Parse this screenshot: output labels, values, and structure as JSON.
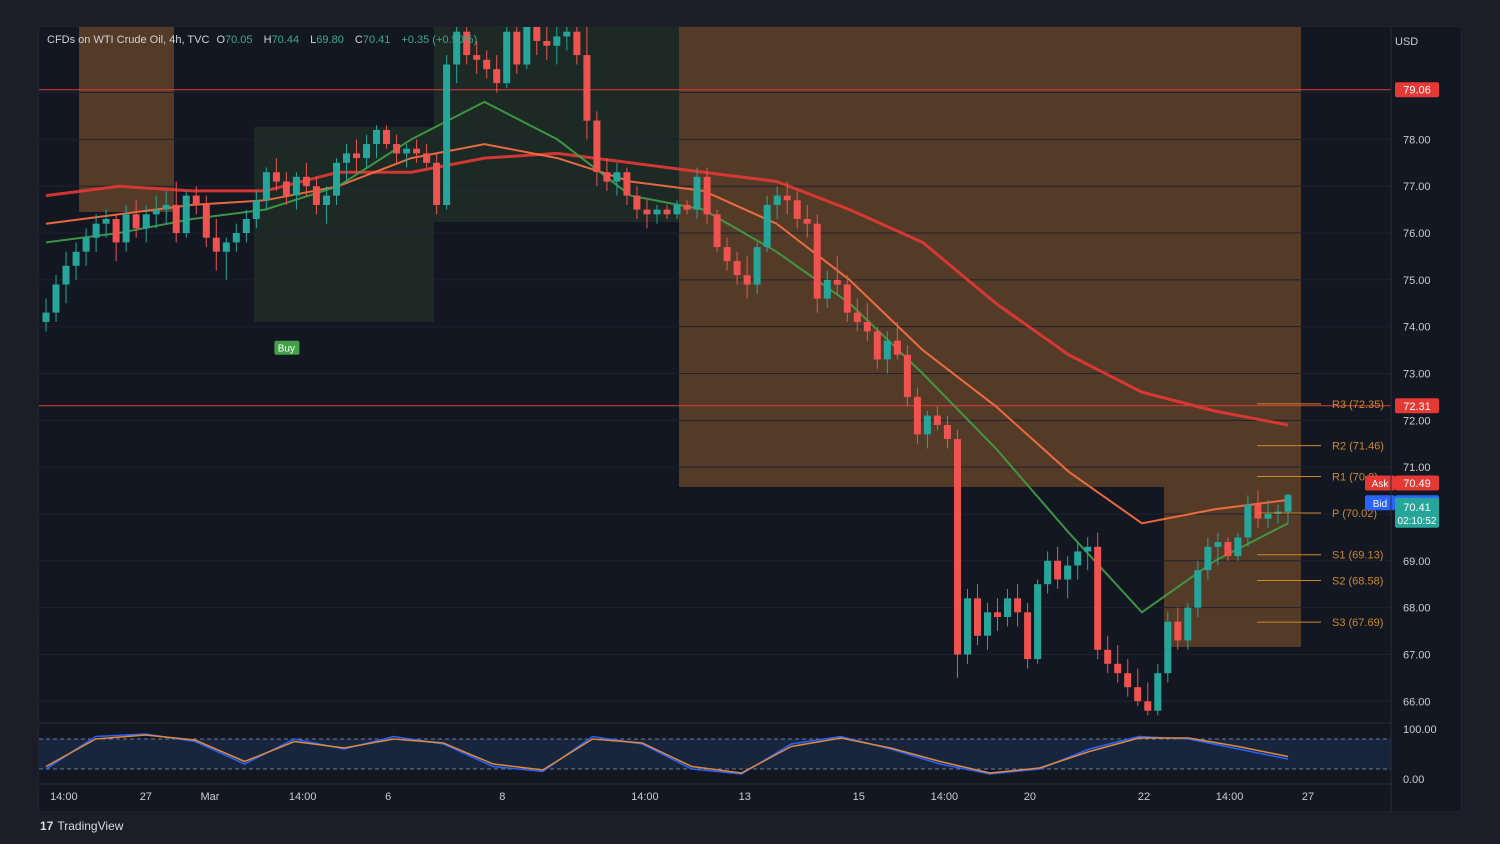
{
  "legend": {
    "symbol": "CFDs on WTI Crude Oil, 4h, TVC",
    "o_label": "O",
    "o": "70.05",
    "h_label": "H",
    "h": "70.44",
    "l_label": "L",
    "l": "69.80",
    "c_label": "C",
    "c": "70.41",
    "change": "+0.35 (+0.50%)"
  },
  "branding": {
    "logo": "TradingView"
  },
  "currency": "USD",
  "colors": {
    "up": "#26a69a",
    "down": "#ef5350",
    "ma_red": "#e53935",
    "ma_green": "#43a047",
    "cloud_orange": "#8a5a2b",
    "pivot": "#c98a2a",
    "panel": "#131722"
  },
  "chart_data": [
    {
      "type": "candlestick",
      "title": "",
      "ylim": [
        65.6,
        80.4
      ],
      "y_ticks": [
        "79.00",
        "78.00",
        "77.00",
        "76.00",
        "75.00",
        "74.00",
        "73.00",
        "72.00",
        "71.00",
        "70.00",
        "69.00",
        "68.00",
        "67.00",
        "66.00"
      ],
      "x_ticks": [
        "14:00",
        "27",
        "Mar",
        "14:00",
        "6",
        "8",
        "14:00",
        "13",
        "15",
        "14:00",
        "20",
        "22",
        "14:00",
        "27"
      ],
      "x_tick_index": [
        2.5,
        14,
        23,
        36,
        48,
        64,
        84,
        98,
        114,
        126,
        138,
        154,
        166,
        177
      ],
      "candles_ohlc": [
        [
          74.1,
          74.6,
          73.9,
          74.3
        ],
        [
          74.3,
          75.1,
          74.1,
          74.9
        ],
        [
          74.9,
          75.6,
          74.5,
          75.3
        ],
        [
          75.3,
          75.8,
          75.0,
          75.6
        ],
        [
          75.6,
          76.1,
          75.3,
          75.9
        ],
        [
          75.9,
          76.4,
          75.6,
          76.2
        ],
        [
          76.2,
          76.5,
          75.9,
          76.3
        ],
        [
          76.3,
          76.4,
          75.4,
          75.8
        ],
        [
          75.8,
          76.6,
          75.6,
          76.4
        ],
        [
          76.4,
          76.7,
          75.9,
          76.1
        ],
        [
          76.1,
          76.6,
          75.8,
          76.4
        ],
        [
          76.4,
          76.8,
          76.1,
          76.5
        ],
        [
          76.5,
          76.9,
          76.2,
          76.6
        ],
        [
          76.6,
          77.1,
          75.8,
          76.0
        ],
        [
          76.0,
          76.9,
          75.9,
          76.8
        ],
        [
          76.8,
          77.0,
          76.4,
          76.6
        ],
        [
          76.6,
          76.8,
          75.7,
          75.9
        ],
        [
          75.9,
          76.3,
          75.2,
          75.6
        ],
        [
          75.6,
          75.9,
          75.0,
          75.8
        ],
        [
          75.8,
          76.2,
          75.6,
          76.0
        ],
        [
          76.0,
          76.5,
          75.8,
          76.3
        ],
        [
          76.3,
          76.9,
          76.1,
          76.7
        ],
        [
          76.7,
          77.4,
          76.5,
          77.3
        ],
        [
          77.3,
          77.6,
          76.9,
          77.1
        ],
        [
          77.1,
          77.3,
          76.6,
          76.8
        ],
        [
          76.8,
          77.3,
          76.5,
          77.2
        ],
        [
          77.2,
          77.5,
          76.8,
          77.0
        ],
        [
          77.0,
          77.2,
          76.4,
          76.6
        ],
        [
          76.6,
          77.0,
          76.2,
          76.8
        ],
        [
          76.8,
          77.6,
          76.6,
          77.5
        ],
        [
          77.5,
          77.9,
          77.1,
          77.7
        ],
        [
          77.7,
          78.0,
          77.3,
          77.6
        ],
        [
          77.6,
          78.1,
          77.4,
          77.9
        ],
        [
          77.9,
          78.3,
          77.6,
          78.2
        ],
        [
          78.2,
          78.3,
          77.8,
          77.9
        ],
        [
          77.9,
          78.1,
          77.5,
          77.7
        ],
        [
          77.7,
          77.9,
          77.4,
          77.8
        ],
        [
          77.8,
          78.0,
          77.5,
          77.7
        ],
        [
          77.7,
          77.9,
          77.4,
          77.5
        ],
        [
          77.5,
          77.7,
          76.4,
          76.6
        ],
        [
          76.6,
          79.8,
          76.5,
          79.6
        ],
        [
          79.6,
          80.4,
          79.2,
          80.3
        ],
        [
          80.3,
          80.4,
          79.6,
          79.8
        ],
        [
          79.8,
          80.1,
          79.4,
          79.7
        ],
        [
          79.7,
          79.9,
          79.3,
          79.5
        ],
        [
          79.5,
          79.8,
          79.0,
          79.2
        ],
        [
          79.2,
          80.4,
          79.1,
          80.3
        ],
        [
          80.3,
          80.4,
          79.4,
          79.6
        ],
        [
          79.6,
          80.4,
          79.5,
          80.4
        ],
        [
          80.4,
          80.4,
          79.8,
          80.1
        ],
        [
          80.1,
          80.4,
          79.7,
          80.0
        ],
        [
          80.0,
          80.4,
          79.6,
          80.2
        ],
        [
          80.2,
          80.4,
          79.9,
          80.3
        ],
        [
          80.3,
          80.4,
          79.6,
          79.8
        ],
        [
          79.8,
          80.4,
          78.0,
          78.4
        ],
        [
          78.4,
          78.6,
          77.0,
          77.3
        ],
        [
          77.3,
          77.6,
          76.9,
          77.1
        ],
        [
          77.1,
          77.5,
          76.8,
          77.3
        ],
        [
          77.3,
          77.4,
          76.6,
          76.8
        ],
        [
          76.8,
          77.0,
          76.3,
          76.5
        ],
        [
          76.5,
          76.7,
          76.1,
          76.4
        ],
        [
          76.4,
          76.6,
          76.2,
          76.5
        ],
        [
          76.5,
          76.6,
          76.3,
          76.4
        ],
        [
          76.4,
          76.7,
          76.3,
          76.6
        ],
        [
          76.6,
          76.7,
          76.4,
          76.5
        ],
        [
          76.5,
          77.4,
          76.3,
          77.2
        ],
        [
          77.2,
          77.4,
          76.2,
          76.4
        ],
        [
          76.4,
          76.5,
          75.6,
          75.7
        ],
        [
          75.7,
          75.9,
          75.2,
          75.4
        ],
        [
          75.4,
          75.6,
          74.9,
          75.1
        ],
        [
          75.1,
          75.5,
          74.6,
          74.9
        ],
        [
          74.9,
          75.8,
          74.7,
          75.7
        ],
        [
          75.7,
          76.8,
          75.6,
          76.6
        ],
        [
          76.6,
          77.0,
          76.3,
          76.8
        ],
        [
          76.8,
          77.1,
          76.4,
          76.7
        ],
        [
          76.7,
          76.9,
          76.1,
          76.3
        ],
        [
          76.3,
          76.6,
          75.9,
          76.2
        ],
        [
          76.2,
          76.4,
          74.3,
          74.6
        ],
        [
          74.6,
          75.2,
          74.4,
          75.0
        ],
        [
          75.0,
          75.5,
          74.7,
          74.9
        ],
        [
          74.9,
          75.1,
          74.1,
          74.3
        ],
        [
          74.3,
          74.6,
          73.9,
          74.1
        ],
        [
          74.1,
          74.5,
          73.7,
          73.9
        ],
        [
          73.9,
          74.0,
          73.1,
          73.3
        ],
        [
          73.3,
          73.9,
          73.0,
          73.7
        ],
        [
          73.7,
          74.1,
          73.3,
          73.4
        ],
        [
          73.4,
          73.6,
          72.3,
          72.5
        ],
        [
          72.5,
          72.7,
          71.5,
          71.7
        ],
        [
          71.7,
          72.2,
          71.4,
          72.1
        ],
        [
          72.1,
          72.3,
          71.8,
          71.9
        ],
        [
          71.9,
          72.1,
          71.4,
          71.6
        ],
        [
          71.6,
          71.8,
          66.5,
          67.0
        ],
        [
          67.0,
          68.4,
          66.8,
          68.2
        ],
        [
          68.2,
          68.5,
          67.2,
          67.4
        ],
        [
          67.4,
          68.1,
          67.1,
          67.9
        ],
        [
          67.9,
          68.2,
          67.5,
          67.8
        ],
        [
          67.8,
          68.4,
          67.6,
          68.2
        ],
        [
          68.2,
          68.5,
          67.6,
          67.9
        ],
        [
          67.9,
          68.1,
          66.7,
          66.9
        ],
        [
          66.9,
          68.6,
          66.8,
          68.5
        ],
        [
          68.5,
          69.2,
          68.3,
          69.0
        ],
        [
          69.0,
          69.3,
          68.4,
          68.6
        ],
        [
          68.6,
          69.1,
          68.2,
          68.9
        ],
        [
          68.9,
          69.4,
          68.6,
          69.2
        ],
        [
          69.2,
          69.5,
          68.8,
          69.3
        ],
        [
          69.3,
          69.6,
          66.9,
          67.1
        ],
        [
          67.1,
          67.4,
          66.6,
          66.8
        ],
        [
          66.8,
          67.2,
          66.4,
          66.6
        ],
        [
          66.6,
          66.9,
          66.1,
          66.3
        ],
        [
          66.3,
          66.7,
          65.9,
          66.0
        ],
        [
          66.0,
          66.4,
          65.7,
          65.8
        ],
        [
          65.8,
          66.8,
          65.7,
          66.6
        ],
        [
          66.6,
          67.9,
          66.4,
          67.7
        ],
        [
          67.7,
          68.0,
          67.1,
          67.3
        ],
        [
          67.3,
          68.1,
          67.1,
          68.0
        ],
        [
          68.0,
          69.0,
          67.8,
          68.8
        ],
        [
          68.8,
          69.5,
          68.6,
          69.3
        ],
        [
          69.3,
          69.6,
          68.9,
          69.4
        ],
        [
          69.4,
          69.5,
          69.0,
          69.1
        ],
        [
          69.1,
          69.6,
          69.0,
          69.5
        ],
        [
          69.5,
          70.4,
          69.3,
          70.2
        ],
        [
          70.2,
          70.5,
          69.7,
          69.9
        ],
        [
          69.9,
          70.3,
          69.7,
          70.0
        ],
        [
          70.0,
          70.2,
          69.8,
          70.05
        ],
        [
          70.05,
          70.44,
          69.8,
          70.41
        ]
      ],
      "series": [
        {
          "name": "",
          "type": "line",
          "role": "ma_slow",
          "values_sampled": [
            76.8,
            77.0,
            76.9,
            76.9,
            77.3,
            77.3,
            77.6,
            77.7,
            77.5,
            77.3,
            77.1,
            76.5,
            75.8,
            74.5,
            73.4,
            72.6,
            72.2,
            71.9
          ]
        },
        {
          "name": "",
          "type": "line",
          "role": "ma_mid",
          "values_sampled": [
            76.2,
            76.4,
            76.6,
            76.7,
            77.0,
            77.6,
            77.9,
            77.6,
            77.1,
            76.9,
            76.2,
            75.0,
            73.5,
            72.3,
            70.9,
            69.8,
            70.1,
            70.3
          ]
        },
        {
          "name": "",
          "type": "line",
          "role": "ma_fast",
          "values_sampled": [
            75.8,
            76.0,
            76.3,
            76.5,
            77.0,
            78.0,
            78.8,
            78.0,
            76.8,
            76.5,
            75.6,
            74.5,
            73.0,
            71.4,
            69.6,
            67.9,
            69.0,
            69.8
          ]
        }
      ],
      "horizontal_lines": [
        79.06,
        72.31
      ],
      "pivots": [
        {
          "label": "R3 (72.35)",
          "value": 72.35
        },
        {
          "label": "R2 (71.46)",
          "value": 71.46
        },
        {
          "label": "R1 (70.8)",
          "value": 70.8
        },
        {
          "label": "P (70.02)",
          "value": 70.02
        },
        {
          "label": "S1 (69.13)",
          "value": 69.13
        },
        {
          "label": "S2 (68.58)",
          "value": 68.58
        },
        {
          "label": "S3 (67.69)",
          "value": 67.69
        }
      ],
      "price_tags": [
        {
          "label": "",
          "value": "79.06",
          "color": "#e53935"
        },
        {
          "label": "",
          "value": "72.31",
          "color": "#e53935"
        },
        {
          "label": "Ask",
          "value": "70.49",
          "color": "#e53935"
        },
        {
          "label": "Bid",
          "value": "70.41",
          "color": "#2962ff"
        },
        {
          "label": "",
          "value": "70.41",
          "sub": "02:10:52",
          "color": "#26a69a"
        }
      ],
      "signals": [
        {
          "label": "Buy",
          "at_index": 24
        }
      ]
    },
    {
      "type": "line",
      "title": "",
      "ylim": [
        0,
        100
      ],
      "y_ticks": [
        "100.00",
        "0.00"
      ],
      "bands": [
        80,
        20
      ],
      "series": [
        {
          "name": "",
          "color": "#2962ff",
          "values_sampled": [
            20,
            85,
            90,
            75,
            30,
            80,
            60,
            85,
            70,
            25,
            15,
            85,
            70,
            20,
            10,
            70,
            85,
            60,
            30,
            10,
            20,
            60,
            85,
            80,
            60,
            40
          ]
        },
        {
          "name": "",
          "color": "#e08a3c",
          "values_sampled": [
            25,
            80,
            88,
            78,
            35,
            75,
            62,
            80,
            72,
            30,
            18,
            80,
            72,
            25,
            12,
            65,
            82,
            62,
            35,
            12,
            22,
            55,
            82,
            82,
            65,
            45
          ]
        }
      ]
    }
  ]
}
